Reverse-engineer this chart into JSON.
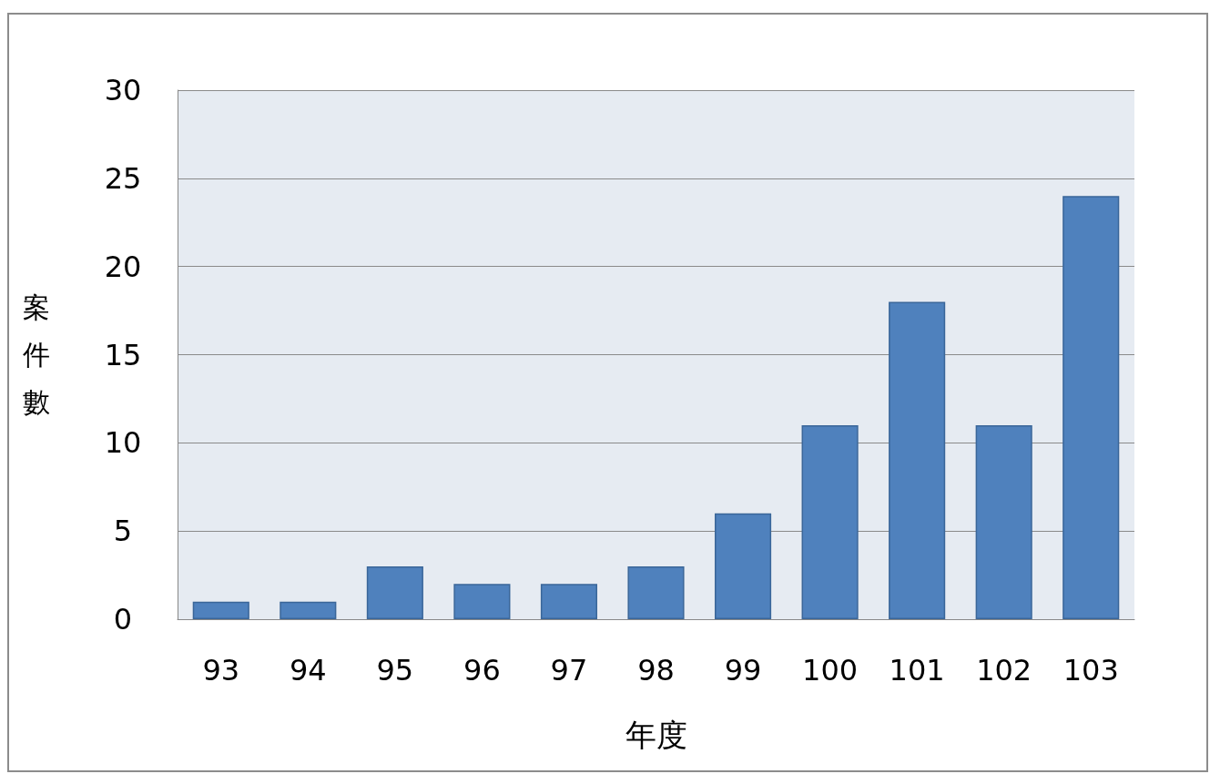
{
  "chart_data": {
    "type": "bar",
    "xlabel": "年度",
    "ylabel": "案件數",
    "categories": [
      "93",
      "94",
      "95",
      "96",
      "97",
      "98",
      "99",
      "100",
      "101",
      "102",
      "103"
    ],
    "values": [
      1,
      1,
      3,
      2,
      2,
      3,
      6,
      11,
      18,
      11,
      24
    ],
    "color": "#4f81bd",
    "ylim": [
      0,
      30
    ],
    "yticks": [
      0,
      5,
      10,
      15,
      20,
      25,
      30
    ],
    "grid": "y"
  }
}
